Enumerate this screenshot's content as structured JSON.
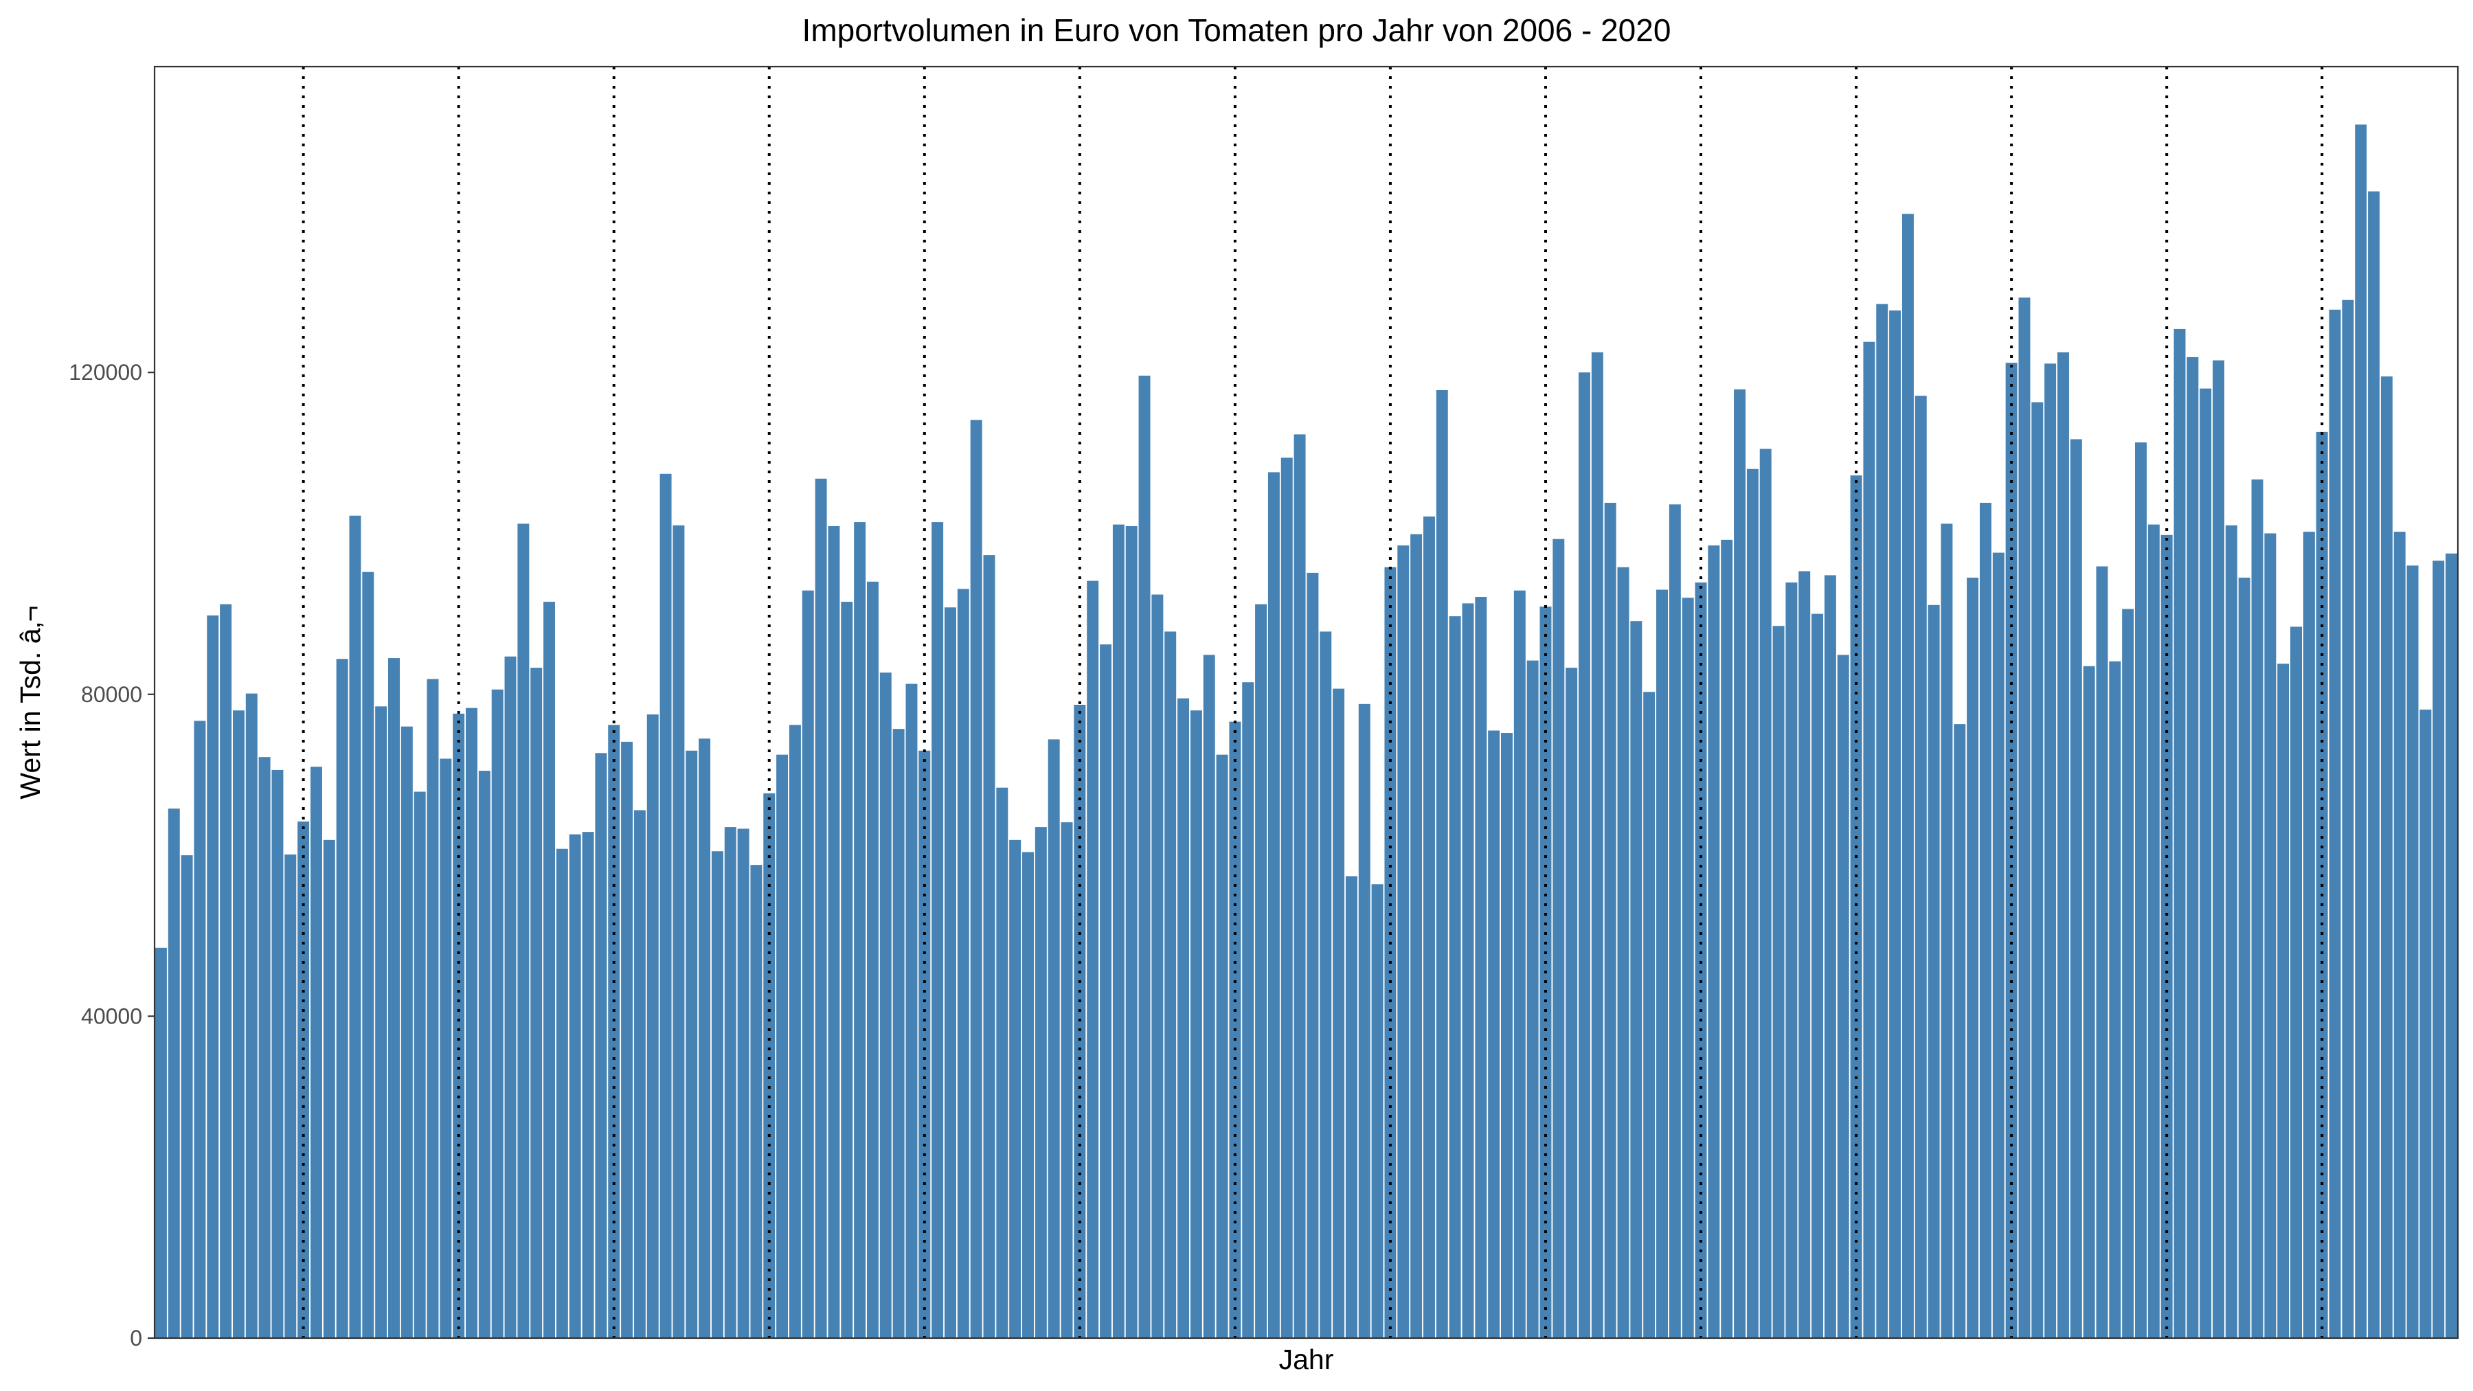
{
  "chart_data": {
    "type": "bar",
    "title": "Importvolumen in Euro von Tomaten pro Jahr von 2006 - 2020",
    "xlabel": "Jahr",
    "ylabel": "Wert in Tsd. â‚¬",
    "ylim": [
      0,
      158000
    ],
    "y_ticks": [
      0,
      40000,
      80000,
      120000
    ],
    "y_tick_labels": [
      "0",
      "40000",
      "80000",
      "120000"
    ],
    "grid": false,
    "legend": "none",
    "bar_color": "#4682b4",
    "divider_color": "#000000",
    "year_dividers": [
      2007,
      2008,
      2009,
      2010,
      2011,
      2012,
      2013,
      2014,
      2015,
      2016,
      2017,
      2018,
      2019,
      2020
    ],
    "series": [
      {
        "values": [
          48500,
          65800,
          60000,
          76700,
          89800,
          91200,
          78000,
          80100,
          72200,
          70600,
          60100,
          64200,
          71000,
          61900,
          84400,
          102200,
          95200,
          78500,
          84500,
          76000,
          67900,
          81900,
          72000,
          77600,
          78300,
          70500,
          80600,
          84700,
          101200,
          83300,
          91500,
          60800,
          62600,
          62900,
          72700,
          76200,
          74100,
          65600,
          77500,
          107400,
          101000,
          73000,
          74500,
          60500,
          63500,
          63300,
          58800,
          67700,
          72500,
          76200,
          92900,
          106800,
          100900,
          91500,
          101400,
          94000,
          82700,
          75700,
          81300,
          73000,
          101400,
          90800,
          93100,
          114100,
          97300,
          68400,
          61900,
          60400,
          63500,
          74400,
          64100,
          78700,
          94100,
          86200,
          101100,
          100900,
          119600,
          92400,
          87800,
          79500,
          78000,
          84900,
          72500,
          76600,
          81500,
          91200,
          107600,
          109400,
          112300,
          95100,
          87800,
          80700,
          57400,
          78800,
          56400,
          95800,
          98500,
          99900,
          102100,
          117800,
          89700,
          91300,
          92100,
          75500,
          75200,
          92900,
          84200,
          90900,
          99300,
          83300,
          120000,
          122500,
          103800,
          95800,
          89100,
          80300,
          93000,
          103600,
          92000,
          93900,
          98500,
          99200,
          117900,
          108000,
          110500,
          88500,
          93900,
          95300,
          90000,
          94800,
          84900,
          107200,
          123800,
          128500,
          127700,
          139700,
          117100,
          91100,
          101200,
          76300,
          94500,
          103800,
          97600,
          121200,
          129300,
          116300,
          121100,
          122500,
          111700,
          83500,
          95900,
          84100,
          90600,
          111300,
          101100,
          99800,
          125400,
          121900,
          118000,
          121500,
          101000,
          94500,
          106700,
          100000,
          83800,
          88400,
          100200,
          112600,
          127800,
          129000,
          150800,
          142500,
          119500,
          100200,
          96000,
          78100,
          96600,
          97500
        ]
      }
    ]
  }
}
